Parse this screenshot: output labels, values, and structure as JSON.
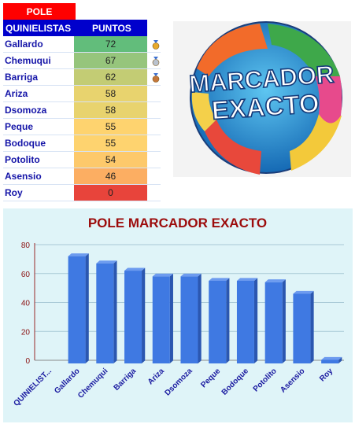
{
  "pole": {
    "label": "POLE"
  },
  "table": {
    "header": {
      "name": "QUINIELISTAS",
      "points": "PUNTOS"
    },
    "rows": [
      {
        "name": "Gallardo",
        "points": "72",
        "color": "#62bd7b",
        "medal": "gold-medal"
      },
      {
        "name": "Chemuqui",
        "points": "67",
        "color": "#96c57c",
        "medal": "silver-medal"
      },
      {
        "name": "Barriga",
        "points": "62",
        "color": "#c3cc74",
        "medal": "bronze-medal"
      },
      {
        "name": "Ariza",
        "points": "58",
        "color": "#e8d36e",
        "medal": null
      },
      {
        "name": "Dsomoza",
        "points": "58",
        "color": "#e8d36e",
        "medal": null
      },
      {
        "name": "Peque",
        "points": "55",
        "color": "#fed36f",
        "medal": null
      },
      {
        "name": "Bodoque",
        "points": "55",
        "color": "#fed36f",
        "medal": null
      },
      {
        "name": "Potolito",
        "points": "54",
        "color": "#fdc96b",
        "medal": null
      },
      {
        "name": "Asensio",
        "points": "46",
        "color": "#fcae62",
        "medal": null
      },
      {
        "name": "Roy",
        "points": "0",
        "color": "#e8443b",
        "medal": null
      }
    ]
  },
  "ball": {
    "line1": "MARCADOR",
    "line2": "EXACTO"
  },
  "chart_data": {
    "type": "bar",
    "title": "POLE MARCADOR EXACTO",
    "categories": [
      "QUINIELIST...",
      "Gallardo",
      "Chemuqui",
      "Barriga",
      "Ariza",
      "Dsomoza",
      "Peque",
      "Bodoque",
      "Potolito",
      "Asensio",
      "Roy"
    ],
    "values": [
      null,
      72,
      67,
      62,
      58,
      58,
      55,
      55,
      54,
      46,
      0
    ],
    "ylim": [
      0,
      80
    ],
    "yticks": [
      0,
      20,
      40,
      60,
      80
    ],
    "grid": true,
    "bar_color": "#3f79e2",
    "background": "#dff4f8"
  }
}
